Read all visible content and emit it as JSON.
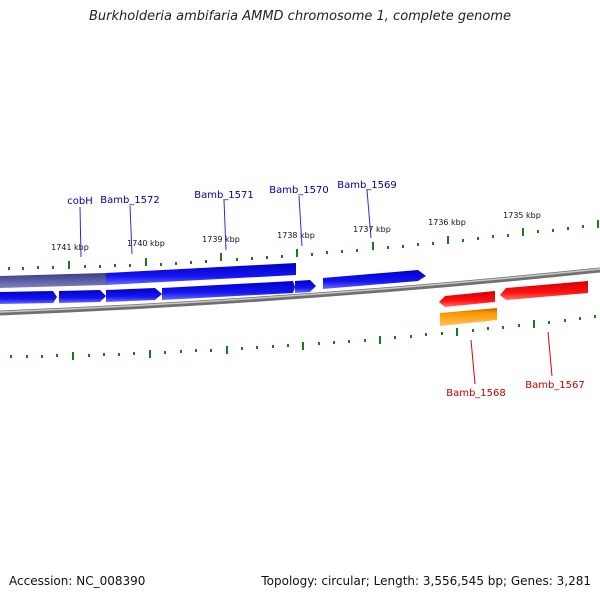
{
  "title": "Burkholderia ambifaria AMMD chromosome 1, complete genome",
  "footer": {
    "accession": "Accession: NC_008390",
    "topology": "Topology: circular; Length: 3,556,545 bp; Genes: 3,281"
  },
  "colors": {
    "background": "#ffffff",
    "forward_gene": "#1010e0",
    "reverse_gene": "#e00000",
    "other_feature": "#ff9900",
    "tick": "#1a7a1a",
    "backbone": "#808080"
  },
  "scale_labels": [
    "1741 kbp",
    "1740 kbp",
    "1739 kbp",
    "1738 kbp",
    "1737 kbp",
    "1736 kbp",
    "1735 kbp"
  ],
  "genes": [
    {
      "label": "cobH",
      "strand": "forward"
    },
    {
      "label": "Bamb_1572",
      "strand": "forward"
    },
    {
      "label": "Bamb_1571",
      "strand": "forward"
    },
    {
      "label": "Bamb_1570",
      "strand": "forward"
    },
    {
      "label": "Bamb_1569",
      "strand": "forward"
    },
    {
      "label": "Bamb_1568",
      "strand": "reverse"
    },
    {
      "label": "Bamb_1567",
      "strand": "reverse"
    }
  ]
}
